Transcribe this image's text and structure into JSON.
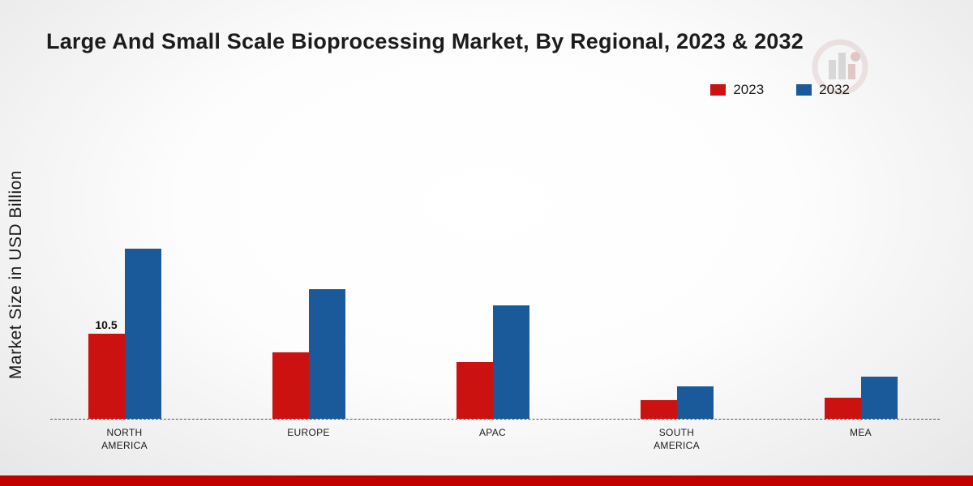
{
  "chart_data": {
    "type": "bar",
    "title": "Large And Small Scale Bioprocessing Market, By Regional, 2023 & 2032",
    "ylabel": "Market Size in USD Billion",
    "xlabel": "",
    "categories": [
      "NORTH AMERICA",
      "EUROPE",
      "APAC",
      "SOUTH AMERICA",
      "MEA"
    ],
    "series": [
      {
        "name": "2023",
        "color": "#cc1111",
        "values": [
          10.5,
          8.2,
          7.0,
          2.3,
          2.6
        ],
        "data_labels": [
          "10.5",
          "",
          "",
          "",
          ""
        ]
      },
      {
        "name": "2032",
        "color": "#1a5a9b",
        "values": [
          21.0,
          16.0,
          14.0,
          4.0,
          5.2
        ],
        "data_labels": [
          "",
          "",
          "",
          "",
          ""
        ]
      }
    ],
    "ylim": [
      0,
      22
    ],
    "grid": false,
    "legend_position": "top-right",
    "baseline_style": "dashed",
    "accent_strip_color": "#c30000"
  }
}
